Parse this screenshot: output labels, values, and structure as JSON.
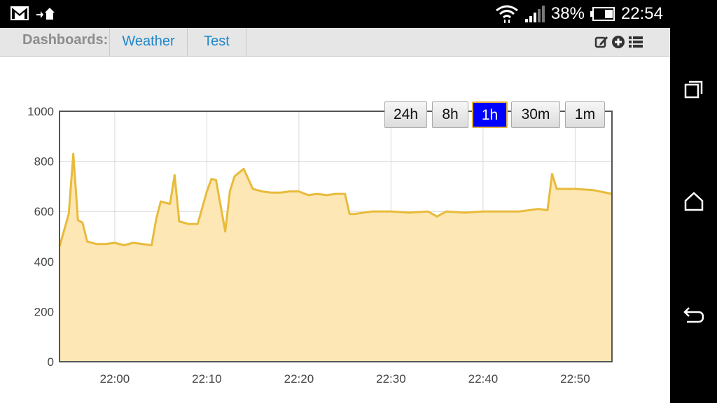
{
  "status_bar": {
    "battery": "38%",
    "time": "22:54",
    "icons": [
      "gmail-icon",
      "upload-home-icon",
      "wifi-icon",
      "signal-icon",
      "battery-icon"
    ]
  },
  "dashboards": {
    "label": "Dashboards:",
    "tabs": [
      {
        "label": "Weather"
      },
      {
        "label": "Test"
      }
    ],
    "tools": [
      "edit-icon",
      "add-icon",
      "list-icon"
    ]
  },
  "range_buttons": [
    {
      "label": "24h",
      "active": false
    },
    {
      "label": "8h",
      "active": false
    },
    {
      "label": "1h",
      "active": true
    },
    {
      "label": "30m",
      "active": false
    },
    {
      "label": "1m",
      "active": false
    }
  ],
  "colors": {
    "line": "#e8bb3a",
    "fill": "#fde7b5",
    "active_button": "#0000ff",
    "link": "#1e87c8"
  },
  "chart_data": {
    "type": "area",
    "xlabel": "",
    "ylabel": "",
    "ylim": [
      0,
      1000
    ],
    "yticks": [
      0,
      200,
      400,
      600,
      800,
      1000
    ],
    "xlim": [
      "21:54",
      "22:54"
    ],
    "xticks": [
      "22:00",
      "22:10",
      "22:20",
      "22:30",
      "22:40",
      "22:50"
    ],
    "grid": true,
    "series": [
      {
        "x": [
          "21:54",
          "21:55",
          "21:55:30",
          "21:56",
          "21:56:30",
          "21:57",
          "21:58",
          "21:59",
          "22:00",
          "22:01",
          "22:02",
          "22:03",
          "22:04",
          "22:04:30",
          "22:05",
          "22:06",
          "22:06:30",
          "22:07",
          "22:08",
          "22:09",
          "22:10",
          "22:10:30",
          "22:11",
          "22:12",
          "22:12:30",
          "22:13",
          "22:14",
          "22:15",
          "22:16",
          "22:17",
          "22:18",
          "22:19",
          "22:20",
          "22:21",
          "22:22",
          "22:23",
          "22:24",
          "22:25",
          "22:25:30",
          "22:26",
          "22:28",
          "22:30",
          "22:32",
          "22:34",
          "22:35",
          "22:36",
          "22:38",
          "22:40",
          "22:42",
          "22:44",
          "22:46",
          "22:47",
          "22:47:30",
          "22:48",
          "22:49",
          "22:50",
          "22:52",
          "22:54"
        ],
        "y": [
          460,
          590,
          830,
          565,
          555,
          480,
          470,
          470,
          475,
          465,
          475,
          470,
          465,
          570,
          640,
          630,
          745,
          560,
          550,
          550,
          680,
          730,
          725,
          520,
          680,
          740,
          770,
          690,
          680,
          675,
          675,
          680,
          680,
          665,
          670,
          665,
          670,
          670,
          590,
          590,
          600,
          600,
          595,
          600,
          580,
          600,
          595,
          600,
          600,
          600,
          610,
          605,
          750,
          690,
          690,
          690,
          685,
          670
        ]
      }
    ]
  }
}
